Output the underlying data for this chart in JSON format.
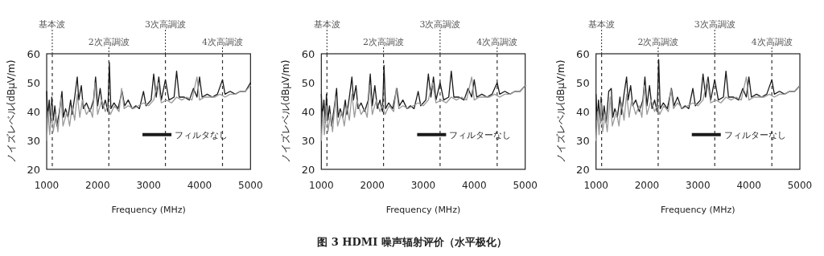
{
  "chart_data": [
    {
      "type": "line",
      "xlabel": "Frequency (MHz)",
      "ylabel": "ノイズレベル(dBμV/m)",
      "xlim": [
        1000,
        5000
      ],
      "xticks": [
        1000,
        2000,
        3000,
        4000,
        5000
      ],
      "ylim": [
        20,
        60
      ],
      "yticks": [
        20,
        30,
        40,
        50,
        60
      ],
      "legend": "bottom right",
      "line_style": "solid",
      "marker": "none",
      "ref_lines": [
        {
          "axis": "x",
          "value": 1110,
          "label": "基本波",
          "line_style": "dashed",
          "color": "#333333"
        },
        {
          "axis": "x",
          "value": 2220,
          "label": "2次高調波",
          "line_style": "dashed",
          "color": "#333333"
        },
        {
          "axis": "x",
          "value": 3330,
          "label": "3次高調波",
          "line_style": "dashed",
          "color": "#333333"
        },
        {
          "axis": "x",
          "value": 4450,
          "label": "4次高調波",
          "line_style": "dashed",
          "color": "#333333"
        }
      ],
      "series": [
        {
          "name": "フィルタなし",
          "color": "#1a1a1a",
          "x": [
            1000,
            1020,
            1050,
            1080,
            1100,
            1130,
            1160,
            1200,
            1250,
            1300,
            1330,
            1370,
            1420,
            1470,
            1500,
            1550,
            1600,
            1630,
            1680,
            1720,
            1780,
            1850,
            1920,
            1960,
            2000,
            2050,
            2100,
            2150,
            2200,
            2230,
            2260,
            2320,
            2400,
            2480,
            2530,
            2600,
            2680,
            2750,
            2820,
            2900,
            2950,
            3050,
            3100,
            3150,
            3200,
            3250,
            3330,
            3400,
            3500,
            3550,
            3600,
            3700,
            3800,
            3880,
            3950,
            4000,
            4050,
            4150,
            4250,
            4350,
            4450,
            4500,
            4600,
            4700,
            4800,
            4900,
            5000
          ],
          "values": [
            47,
            38,
            44,
            36,
            45,
            37,
            42,
            35,
            40,
            47,
            38,
            41,
            38,
            44,
            39,
            45,
            52,
            44,
            49,
            41,
            43,
            40,
            44,
            52,
            42,
            48,
            41,
            44,
            40,
            57,
            41,
            43,
            41,
            47,
            42,
            44,
            41,
            42,
            41,
            47,
            42,
            44,
            53,
            45,
            52,
            44,
            51,
            44,
            45,
            54,
            45,
            45,
            44,
            48,
            45,
            52,
            45,
            46,
            45,
            46,
            51,
            46,
            47,
            46,
            47,
            47,
            50
          ]
        },
        {
          "color": "#9a9a9a",
          "x": [
            1000,
            1030,
            1060,
            1100,
            1130,
            1180,
            1220,
            1280,
            1320,
            1400,
            1450,
            1500,
            1550,
            1600,
            1650,
            1700,
            1780,
            1850,
            1900,
            1950,
            2000,
            2080,
            2150,
            2200,
            2250,
            2330,
            2420,
            2470,
            2520,
            2600,
            2700,
            2800,
            2900,
            3000,
            3100,
            3180,
            3250,
            3350,
            3450,
            3550,
            3650,
            3750,
            3850,
            3950,
            4000,
            4100,
            4200,
            4300,
            4400,
            4500,
            4600,
            4700,
            4800,
            4900,
            5000
          ],
          "values": [
            30,
            40,
            32,
            42,
            33,
            39,
            33,
            45,
            35,
            40,
            35,
            42,
            37,
            46,
            38,
            44,
            39,
            41,
            38,
            50,
            39,
            44,
            40,
            42,
            39,
            42,
            40,
            48,
            41,
            42,
            41,
            42,
            43,
            42,
            44,
            50,
            43,
            44,
            43,
            45,
            44,
            45,
            44,
            52,
            44,
            45,
            45,
            45,
            46,
            45,
            46,
            46,
            47,
            47,
            49
          ]
        }
      ]
    },
    {
      "type": "line",
      "xlabel": "Frequency (MHz)",
      "ylabel": "ノイズレベル(dBμV/m)",
      "xlim": [
        1000,
        5000
      ],
      "xticks": [
        1000,
        2000,
        3000,
        4000,
        5000
      ],
      "ylim": [
        20,
        60
      ],
      "yticks": [
        20,
        30,
        40,
        50,
        60
      ],
      "legend": "bottom right",
      "line_style": "solid",
      "marker": "none",
      "annotations": [
        "图 3 HDMI 噪声辐射评价（水平极化）"
      ],
      "ref_lines": [
        {
          "axis": "x",
          "value": 1110,
          "label": "基本波",
          "line_style": "dashed",
          "color": "#333333"
        },
        {
          "axis": "x",
          "value": 2220,
          "label": "2次高調波",
          "line_style": "dashed",
          "color": "#333333"
        },
        {
          "axis": "x",
          "value": 3330,
          "label": "3次高調波",
          "line_style": "dashed",
          "color": "#333333"
        },
        {
          "axis": "x",
          "value": 4450,
          "label": "4次高調波",
          "line_style": "dashed",
          "color": "#333333"
        }
      ],
      "series": [
        {
          "name": "フィルターなし",
          "color": "#1a1a1a",
          "x": [
            1000,
            1020,
            1050,
            1080,
            1100,
            1130,
            1160,
            1200,
            1250,
            1300,
            1330,
            1370,
            1420,
            1470,
            1500,
            1550,
            1600,
            1630,
            1680,
            1720,
            1780,
            1850,
            1920,
            1960,
            2000,
            2050,
            2100,
            2150,
            2200,
            2230,
            2260,
            2320,
            2400,
            2480,
            2530,
            2600,
            2680,
            2750,
            2820,
            2900,
            2950,
            3050,
            3100,
            3150,
            3200,
            3250,
            3330,
            3400,
            3500,
            3550,
            3600,
            3700,
            3800,
            3880,
            3950,
            4000,
            4050,
            4150,
            4250,
            4350,
            4450,
            4500,
            4600,
            4700,
            4800,
            4900,
            5000
          ],
          "values": [
            46,
            38,
            44,
            36,
            46,
            37,
            42,
            35,
            41,
            48,
            38,
            41,
            38,
            44,
            39,
            45,
            52,
            44,
            49,
            41,
            43,
            40,
            44,
            53,
            42,
            49,
            41,
            44,
            40,
            56,
            41,
            43,
            41,
            48,
            42,
            44,
            41,
            42,
            41,
            47,
            42,
            44,
            53,
            45,
            52,
            44,
            50,
            44,
            45,
            54,
            45,
            45,
            44,
            48,
            45,
            51,
            45,
            46,
            45,
            46,
            50,
            46,
            47,
            46,
            47,
            47,
            49
          ]
        },
        {
          "color": "#9a9a9a",
          "x": [
            1000,
            1030,
            1060,
            1100,
            1130,
            1180,
            1220,
            1280,
            1320,
            1400,
            1450,
            1500,
            1550,
            1600,
            1650,
            1700,
            1780,
            1850,
            1900,
            1950,
            2000,
            2080,
            2150,
            2200,
            2250,
            2330,
            2420,
            2470,
            2520,
            2600,
            2700,
            2800,
            2900,
            3000,
            3100,
            3180,
            3250,
            3350,
            3450,
            3550,
            3650,
            3750,
            3850,
            3950,
            4000,
            4100,
            4200,
            4300,
            4400,
            4500,
            4600,
            4700,
            4800,
            4900,
            5000
          ],
          "values": [
            30,
            40,
            32,
            42,
            33,
            39,
            33,
            45,
            35,
            40,
            35,
            42,
            37,
            46,
            38,
            44,
            39,
            41,
            38,
            49,
            39,
            44,
            40,
            42,
            39,
            42,
            40,
            48,
            41,
            42,
            41,
            42,
            43,
            42,
            44,
            50,
            43,
            44,
            43,
            45,
            44,
            45,
            44,
            52,
            44,
            45,
            45,
            45,
            46,
            45,
            46,
            46,
            47,
            47,
            49
          ]
        }
      ]
    },
    {
      "type": "line",
      "xlabel": "Frequency (MHz)",
      "ylabel": "ノイズレベル(dBμV/m)",
      "xlim": [
        1000,
        5000
      ],
      "xticks": [
        1000,
        2000,
        3000,
        4000,
        5000
      ],
      "ylim": [
        20,
        60
      ],
      "yticks": [
        20,
        30,
        40,
        50,
        60
      ],
      "legend": "bottom right",
      "line_style": "solid",
      "marker": "none",
      "ref_lines": [
        {
          "axis": "x",
          "value": 1110,
          "label": "基本波",
          "line_style": "dashed",
          "color": "#333333"
        },
        {
          "axis": "x",
          "value": 2220,
          "label": "2次高調波",
          "line_style": "dashed",
          "color": "#333333"
        },
        {
          "axis": "x",
          "value": 3330,
          "label": "3次高調波",
          "line_style": "dashed",
          "color": "#333333"
        },
        {
          "axis": "x",
          "value": 4450,
          "label": "4次高調波",
          "line_style": "dashed",
          "color": "#333333"
        }
      ],
      "series": [
        {
          "name": "フィルターなし",
          "color": "#1a1a1a",
          "x": [
            1000,
            1020,
            1050,
            1080,
            1100,
            1130,
            1160,
            1200,
            1250,
            1300,
            1330,
            1370,
            1420,
            1470,
            1500,
            1550,
            1600,
            1630,
            1680,
            1720,
            1780,
            1850,
            1920,
            1960,
            2000,
            2050,
            2100,
            2150,
            2200,
            2230,
            2260,
            2320,
            2400,
            2480,
            2530,
            2600,
            2680,
            2750,
            2820,
            2900,
            2950,
            3050,
            3100,
            3150,
            3200,
            3250,
            3330,
            3400,
            3500,
            3550,
            3600,
            3700,
            3800,
            3880,
            3950,
            4000,
            4050,
            4150,
            4250,
            4350,
            4450,
            4500,
            4600,
            4700,
            4800,
            4900,
            5000
          ],
          "values": [
            46,
            37,
            44,
            36,
            45,
            37,
            42,
            36,
            47,
            48,
            38,
            41,
            38,
            45,
            39,
            46,
            52,
            44,
            49,
            42,
            44,
            40,
            44,
            52,
            42,
            49,
            41,
            44,
            40,
            58,
            41,
            43,
            41,
            48,
            42,
            45,
            41,
            42,
            41,
            48,
            42,
            44,
            53,
            45,
            52,
            44,
            51,
            44,
            45,
            54,
            45,
            45,
            44,
            48,
            45,
            52,
            45,
            46,
            45,
            46,
            51,
            46,
            47,
            46,
            47,
            47,
            49
          ]
        },
        {
          "color": "#9a9a9a",
          "x": [
            1000,
            1030,
            1060,
            1100,
            1130,
            1180,
            1220,
            1280,
            1320,
            1400,
            1450,
            1500,
            1550,
            1600,
            1650,
            1700,
            1780,
            1850,
            1900,
            1950,
            2000,
            2080,
            2150,
            2200,
            2250,
            2330,
            2420,
            2470,
            2520,
            2600,
            2700,
            2800,
            2900,
            3000,
            3100,
            3180,
            3250,
            3350,
            3450,
            3550,
            3650,
            3750,
            3850,
            3950,
            4000,
            4100,
            4200,
            4300,
            4400,
            4500,
            4600,
            4700,
            4800,
            4900,
            5000
          ],
          "values": [
            30,
            40,
            32,
            43,
            33,
            39,
            33,
            45,
            35,
            40,
            35,
            43,
            37,
            46,
            38,
            44,
            39,
            42,
            38,
            49,
            39,
            44,
            40,
            42,
            39,
            42,
            40,
            48,
            41,
            43,
            41,
            42,
            43,
            42,
            44,
            51,
            43,
            44,
            43,
            45,
            44,
            45,
            44,
            52,
            44,
            45,
            45,
            45,
            46,
            45,
            46,
            46,
            47,
            47,
            49
          ]
        }
      ]
    }
  ]
}
